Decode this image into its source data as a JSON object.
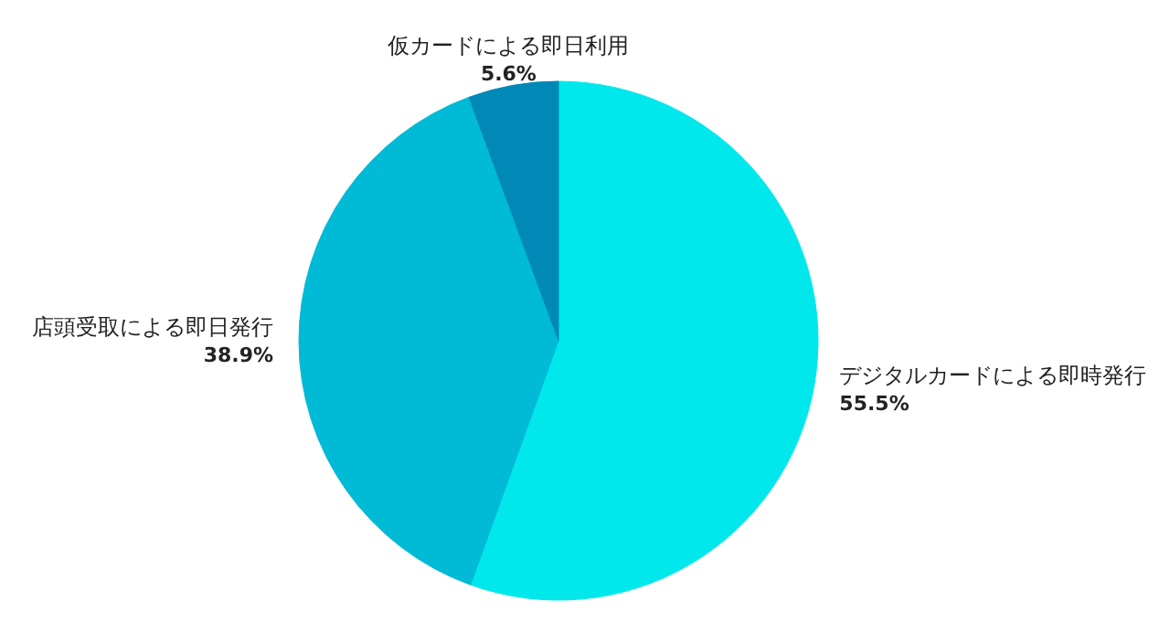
{
  "chart_data": {
    "type": "pie",
    "categories": [
      "デジタルカードによる即時発行",
      "店頭受取による即日発行",
      "仮カードによる即日利用"
    ],
    "values": [
      55.5,
      38.9,
      5.6
    ],
    "value_labels": [
      "55.5%",
      "38.9%",
      "5.6%"
    ],
    "colors": [
      "#00e8ec",
      "#00bad6",
      "#0089b6"
    ]
  }
}
